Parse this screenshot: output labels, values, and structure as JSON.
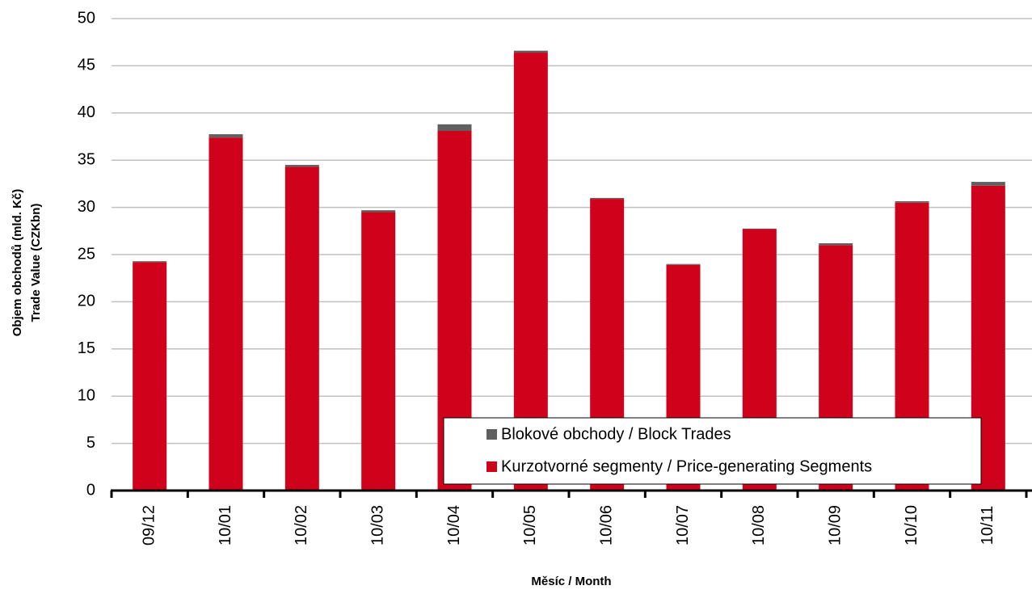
{
  "chart_data": {
    "type": "stacked_bar",
    "categories": [
      "09/12",
      "10/01",
      "10/02",
      "10/03",
      "10/04",
      "10/05",
      "10/06",
      "10/07",
      "10/08",
      "10/09",
      "10/10",
      "10/11"
    ],
    "series": [
      {
        "name": "Kurzotvorné segmenty / Price-generating Segments",
        "color": "#d0021b",
        "values": [
          24.2,
          37.4,
          34.3,
          29.5,
          38.1,
          46.4,
          30.9,
          23.9,
          27.7,
          26.0,
          30.5,
          32.3
        ]
      },
      {
        "name": "Blokové obchody / Block Trades",
        "color": "#606060",
        "values": [
          0.1,
          0.35,
          0.2,
          0.2,
          0.7,
          0.2,
          0.1,
          0.1,
          0.05,
          0.2,
          0.15,
          0.4
        ]
      }
    ],
    "ylim": [
      0,
      50
    ],
    "yticks": [
      0,
      5,
      10,
      15,
      20,
      25,
      30,
      35,
      40,
      45,
      50
    ],
    "y_label_lines": [
      "Objem obchodů (mld. Kč)",
      "Trade Value (CZKbn)"
    ],
    "x_label": "Měsíc / Month",
    "grid": true
  }
}
